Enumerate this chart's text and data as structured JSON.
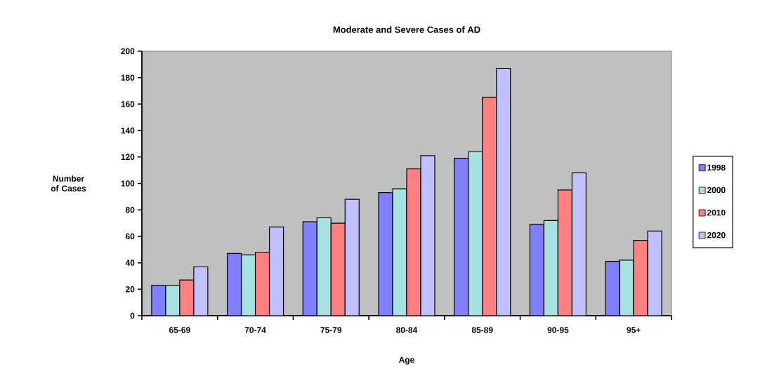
{
  "chart_data": {
    "type": "bar",
    "title": "Moderate and Severe Cases of AD",
    "xlabel": "Age",
    "ylabel": "Number of Cases",
    "categories": [
      "65-69",
      "70-74",
      "75-79",
      "80-84",
      "85-89",
      "90-95",
      "95+"
    ],
    "series": [
      {
        "name": "1998",
        "color": "#8080ff",
        "values": [
          23,
          47,
          71,
          93,
          119,
          69,
          41
        ]
      },
      {
        "name": "2000",
        "color": "#a6e0e0",
        "values": [
          23,
          46,
          74,
          96,
          124,
          72,
          42
        ]
      },
      {
        "name": "2010",
        "color": "#ff8080",
        "values": [
          27,
          48,
          70,
          111,
          165,
          95,
          57
        ]
      },
      {
        "name": "2020",
        "color": "#c0c0ff",
        "values": [
          37,
          67,
          88,
          121,
          187,
          108,
          64
        ]
      }
    ],
    "ylim": [
      0,
      200
    ],
    "yticks": [
      0,
      20,
      40,
      60,
      80,
      100,
      120,
      140,
      160,
      180,
      200
    ],
    "grid": false,
    "legend": "right"
  }
}
